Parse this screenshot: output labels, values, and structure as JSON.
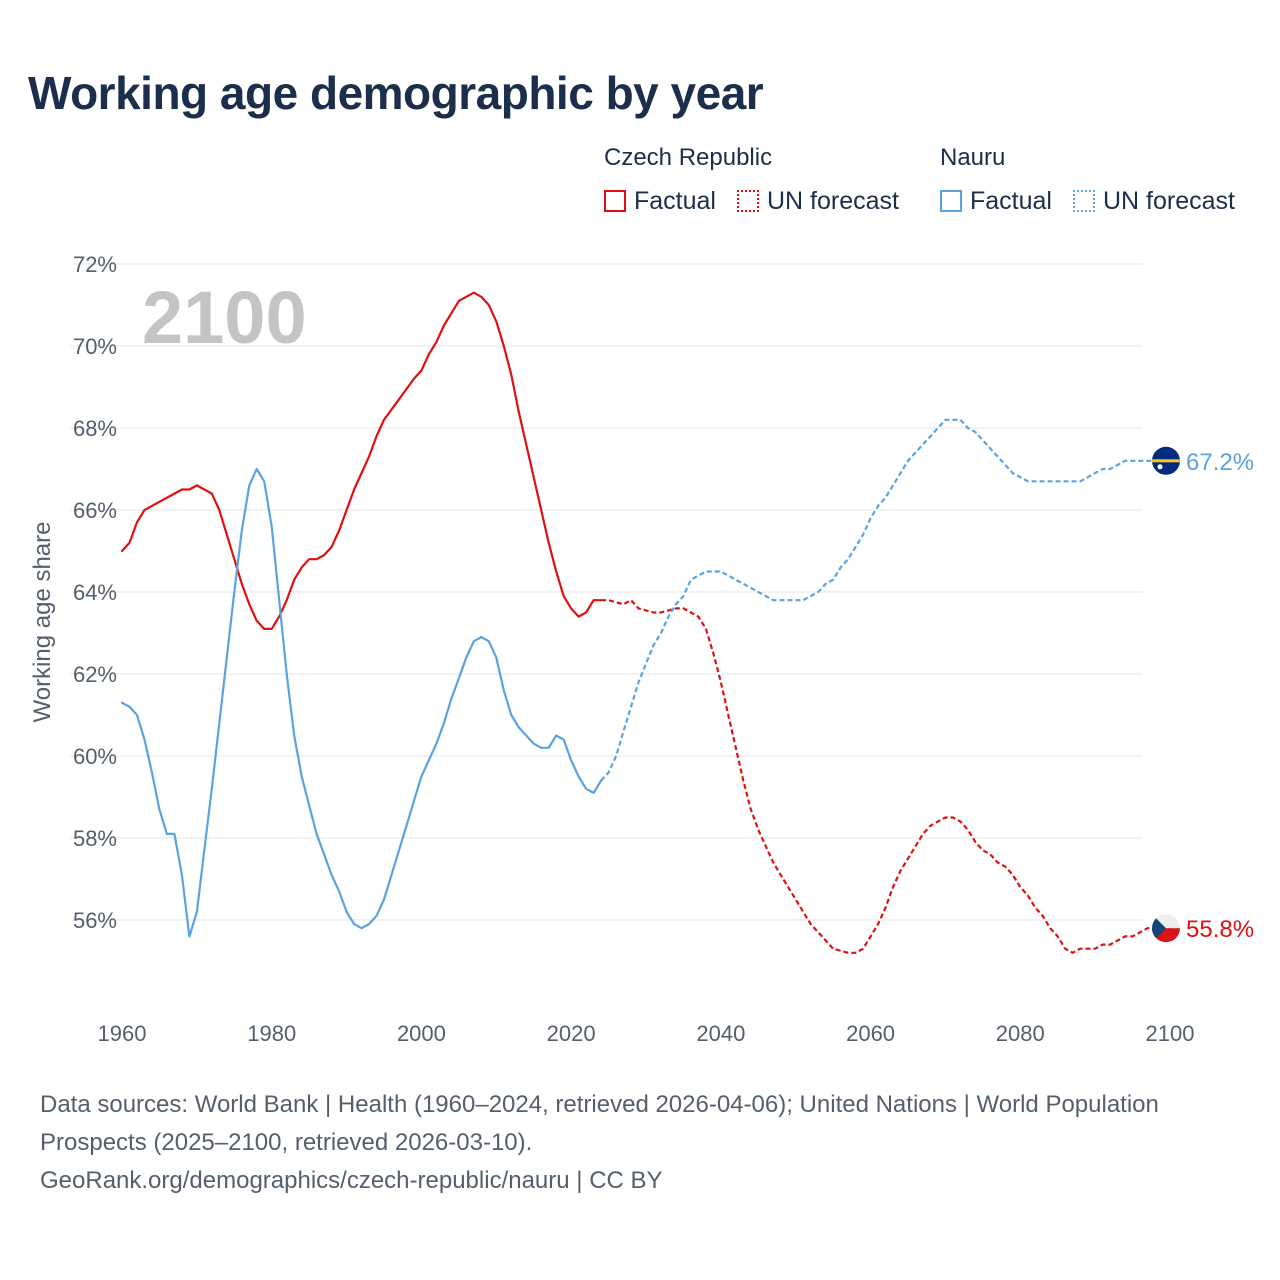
{
  "title": "Working age demographic by year",
  "legend": {
    "groups": [
      {
        "name": "Czech Republic",
        "color": "#e01010",
        "factual_label": "Factual",
        "forecast_label": "UN forecast"
      },
      {
        "name": "Nauru",
        "color": "#5aa2e0",
        "factual_label": "Factual",
        "forecast_label": "UN forecast"
      }
    ]
  },
  "footer": {
    "line1": "Data sources: World Bank | Health (1960–2024, retrieved 2026-04-06); United Nations | World Population Prospects (2025–2100, retrieved 2026-03-10).",
    "line2": "GeoRank.org/demographics/czech-republic/nauru | CC BY"
  },
  "chart_data": {
    "type": "line",
    "year_watermark": "2100",
    "ylabel": "Working age share",
    "xlabel": "",
    "xlim": [
      1960,
      2100
    ],
    "ylim": [
      54,
      72
    ],
    "x_ticks": [
      "1960",
      "1980",
      "2000",
      "2020",
      "2040",
      "2060",
      "2080",
      "2100"
    ],
    "y_ticks": [
      "56%",
      "58%",
      "60%",
      "62%",
      "64%",
      "66%",
      "68%",
      "70%",
      "72%"
    ],
    "grid": true,
    "factual_range": [
      1960,
      2024
    ],
    "forecast_range": [
      2024,
      2100
    ],
    "series": [
      {
        "name": "Czech Republic",
        "color": "#e01010",
        "end_label": "55.8%",
        "end_icon": "czech-flag-icon",
        "points": [
          [
            1960,
            65.0
          ],
          [
            1961,
            65.2
          ],
          [
            1962,
            65.7
          ],
          [
            1963,
            66.0
          ],
          [
            1965,
            66.2
          ],
          [
            1967,
            66.4
          ],
          [
            1968,
            66.5
          ],
          [
            1969,
            66.5
          ],
          [
            1970,
            66.6
          ],
          [
            1972,
            66.4
          ],
          [
            1973,
            66.0
          ],
          [
            1974,
            65.4
          ],
          [
            1975,
            64.8
          ],
          [
            1976,
            64.2
          ],
          [
            1977,
            63.7
          ],
          [
            1978,
            63.3
          ],
          [
            1979,
            63.1
          ],
          [
            1980,
            63.1
          ],
          [
            1981,
            63.4
          ],
          [
            1982,
            63.8
          ],
          [
            1983,
            64.3
          ],
          [
            1984,
            64.6
          ],
          [
            1985,
            64.8
          ],
          [
            1986,
            64.8
          ],
          [
            1987,
            64.9
          ],
          [
            1988,
            65.1
          ],
          [
            1989,
            65.5
          ],
          [
            1990,
            66.0
          ],
          [
            1991,
            66.5
          ],
          [
            1993,
            67.3
          ],
          [
            1994,
            67.8
          ],
          [
            1995,
            68.2
          ],
          [
            1997,
            68.7
          ],
          [
            1999,
            69.2
          ],
          [
            2000,
            69.4
          ],
          [
            2001,
            69.8
          ],
          [
            2002,
            70.1
          ],
          [
            2003,
            70.5
          ],
          [
            2004,
            70.8
          ],
          [
            2005,
            71.1
          ],
          [
            2006,
            71.2
          ],
          [
            2007,
            71.3
          ],
          [
            2008,
            71.2
          ],
          [
            2009,
            71.0
          ],
          [
            2010,
            70.6
          ],
          [
            2011,
            70.0
          ],
          [
            2012,
            69.3
          ],
          [
            2013,
            68.4
          ],
          [
            2014,
            67.6
          ],
          [
            2015,
            66.8
          ],
          [
            2016,
            66.0
          ],
          [
            2017,
            65.2
          ],
          [
            2018,
            64.5
          ],
          [
            2019,
            63.9
          ],
          [
            2020,
            63.6
          ],
          [
            2021,
            63.4
          ],
          [
            2022,
            63.5
          ],
          [
            2023,
            63.8
          ],
          [
            2024,
            63.8
          ],
          [
            2025,
            63.8
          ],
          [
            2027,
            63.7
          ],
          [
            2028,
            63.8
          ],
          [
            2029,
            63.6
          ],
          [
            2031,
            63.5
          ],
          [
            2032,
            63.5
          ],
          [
            2034,
            63.6
          ],
          [
            2035,
            63.6
          ],
          [
            2036,
            63.5
          ],
          [
            2037,
            63.4
          ],
          [
            2038,
            63.1
          ],
          [
            2039,
            62.5
          ],
          [
            2040,
            61.8
          ],
          [
            2041,
            61.0
          ],
          [
            2042,
            60.2
          ],
          [
            2043,
            59.4
          ],
          [
            2044,
            58.7
          ],
          [
            2045,
            58.2
          ],
          [
            2046,
            57.8
          ],
          [
            2047,
            57.4
          ],
          [
            2048,
            57.1
          ],
          [
            2049,
            56.8
          ],
          [
            2050,
            56.5
          ],
          [
            2051,
            56.2
          ],
          [
            2052,
            55.9
          ],
          [
            2054,
            55.5
          ],
          [
            2055,
            55.3
          ],
          [
            2057,
            55.2
          ],
          [
            2058,
            55.2
          ],
          [
            2059,
            55.3
          ],
          [
            2060,
            55.6
          ],
          [
            2061,
            55.9
          ],
          [
            2062,
            56.3
          ],
          [
            2063,
            56.8
          ],
          [
            2064,
            57.2
          ],
          [
            2065,
            57.5
          ],
          [
            2066,
            57.8
          ],
          [
            2067,
            58.1
          ],
          [
            2068,
            58.3
          ],
          [
            2069,
            58.4
          ],
          [
            2070,
            58.5
          ],
          [
            2071,
            58.5
          ],
          [
            2072,
            58.4
          ],
          [
            2073,
            58.2
          ],
          [
            2074,
            57.9
          ],
          [
            2075,
            57.7
          ],
          [
            2076,
            57.6
          ],
          [
            2077,
            57.4
          ],
          [
            2078,
            57.3
          ],
          [
            2079,
            57.1
          ],
          [
            2080,
            56.8
          ],
          [
            2081,
            56.6
          ],
          [
            2082,
            56.3
          ],
          [
            2083,
            56.1
          ],
          [
            2084,
            55.8
          ],
          [
            2085,
            55.6
          ],
          [
            2086,
            55.3
          ],
          [
            2087,
            55.2
          ],
          [
            2088,
            55.3
          ],
          [
            2090,
            55.3
          ],
          [
            2091,
            55.4
          ],
          [
            2092,
            55.4
          ],
          [
            2093,
            55.5
          ],
          [
            2094,
            55.6
          ],
          [
            2095,
            55.6
          ],
          [
            2096,
            55.7
          ],
          [
            2097,
            55.8
          ],
          [
            2100,
            55.8
          ]
        ]
      },
      {
        "name": "Nauru",
        "color": "#5aa2e0",
        "end_label": "67.2%",
        "end_icon": "nauru-flag-icon",
        "points": [
          [
            1960,
            61.3
          ],
          [
            1961,
            61.2
          ],
          [
            1962,
            61.0
          ],
          [
            1963,
            60.4
          ],
          [
            1964,
            59.6
          ],
          [
            1965,
            58.7
          ],
          [
            1966,
            58.1
          ],
          [
            1967,
            58.1
          ],
          [
            1968,
            57.1
          ],
          [
            1969,
            55.6
          ],
          [
            1970,
            56.2
          ],
          [
            1971,
            57.7
          ],
          [
            1972,
            59.2
          ],
          [
            1973,
            60.8
          ],
          [
            1974,
            62.4
          ],
          [
            1975,
            64.0
          ],
          [
            1976,
            65.5
          ],
          [
            1977,
            66.6
          ],
          [
            1978,
            67.0
          ],
          [
            1979,
            66.7
          ],
          [
            1980,
            65.6
          ],
          [
            1981,
            63.8
          ],
          [
            1982,
            62.0
          ],
          [
            1983,
            60.5
          ],
          [
            1984,
            59.5
          ],
          [
            1985,
            58.8
          ],
          [
            1986,
            58.1
          ],
          [
            1987,
            57.6
          ],
          [
            1988,
            57.1
          ],
          [
            1989,
            56.7
          ],
          [
            1990,
            56.2
          ],
          [
            1991,
            55.9
          ],
          [
            1992,
            55.8
          ],
          [
            1993,
            55.9
          ],
          [
            1994,
            56.1
          ],
          [
            1995,
            56.5
          ],
          [
            1996,
            57.1
          ],
          [
            1997,
            57.7
          ],
          [
            1998,
            58.3
          ],
          [
            1999,
            58.9
          ],
          [
            2000,
            59.5
          ],
          [
            2001,
            59.9
          ],
          [
            2002,
            60.3
          ],
          [
            2003,
            60.8
          ],
          [
            2004,
            61.4
          ],
          [
            2005,
            61.9
          ],
          [
            2006,
            62.4
          ],
          [
            2007,
            62.8
          ],
          [
            2008,
            62.9
          ],
          [
            2009,
            62.8
          ],
          [
            2010,
            62.4
          ],
          [
            2011,
            61.6
          ],
          [
            2012,
            61.0
          ],
          [
            2013,
            60.7
          ],
          [
            2014,
            60.5
          ],
          [
            2015,
            60.3
          ],
          [
            2016,
            60.2
          ],
          [
            2017,
            60.2
          ],
          [
            2018,
            60.5
          ],
          [
            2019,
            60.4
          ],
          [
            2020,
            59.9
          ],
          [
            2021,
            59.5
          ],
          [
            2022,
            59.2
          ],
          [
            2023,
            59.1
          ],
          [
            2024,
            59.4
          ],
          [
            2025,
            59.6
          ],
          [
            2026,
            60.0
          ],
          [
            2027,
            60.6
          ],
          [
            2028,
            61.2
          ],
          [
            2029,
            61.8
          ],
          [
            2031,
            62.7
          ],
          [
            2032,
            63.0
          ],
          [
            2033,
            63.4
          ],
          [
            2034,
            63.7
          ],
          [
            2035,
            63.9
          ],
          [
            2036,
            64.3
          ],
          [
            2037,
            64.4
          ],
          [
            2038,
            64.5
          ],
          [
            2040,
            64.5
          ],
          [
            2041,
            64.4
          ],
          [
            2043,
            64.2
          ],
          [
            2045,
            64.0
          ],
          [
            2047,
            63.8
          ],
          [
            2051,
            63.8
          ],
          [
            2052,
            63.9
          ],
          [
            2053,
            64.0
          ],
          [
            2054,
            64.2
          ],
          [
            2055,
            64.3
          ],
          [
            2056,
            64.6
          ],
          [
            2057,
            64.8
          ],
          [
            2058,
            65.1
          ],
          [
            2059,
            65.4
          ],
          [
            2060,
            65.8
          ],
          [
            2061,
            66.1
          ],
          [
            2062,
            66.3
          ],
          [
            2063,
            66.6
          ],
          [
            2064,
            66.9
          ],
          [
            2065,
            67.2
          ],
          [
            2066,
            67.4
          ],
          [
            2067,
            67.6
          ],
          [
            2068,
            67.8
          ],
          [
            2069,
            68.0
          ],
          [
            2070,
            68.2
          ],
          [
            2071,
            68.2
          ],
          [
            2072,
            68.2
          ],
          [
            2073,
            68.0
          ],
          [
            2074,
            67.9
          ],
          [
            2075,
            67.7
          ],
          [
            2076,
            67.5
          ],
          [
            2077,
            67.3
          ],
          [
            2078,
            67.1
          ],
          [
            2079,
            66.9
          ],
          [
            2080,
            66.8
          ],
          [
            2081,
            66.7
          ],
          [
            2085,
            66.7
          ],
          [
            2086,
            66.7
          ],
          [
            2088,
            66.7
          ],
          [
            2089,
            66.8
          ],
          [
            2090,
            66.9
          ],
          [
            2091,
            67.0
          ],
          [
            2092,
            67.0
          ],
          [
            2093,
            67.1
          ],
          [
            2094,
            67.2
          ],
          [
            2100,
            67.2
          ]
        ]
      }
    ]
  }
}
